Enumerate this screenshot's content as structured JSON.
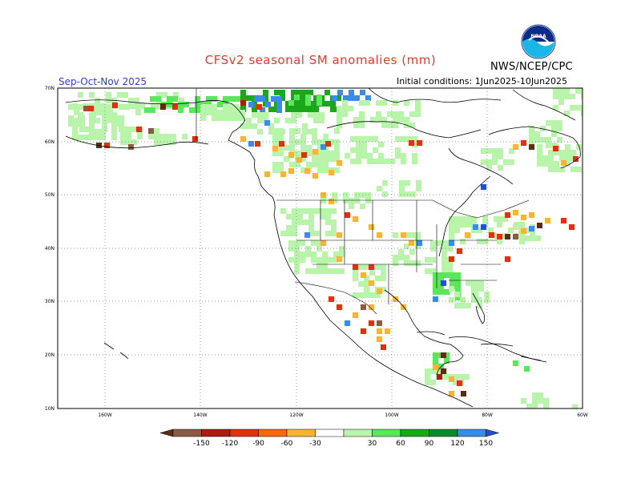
{
  "header": {
    "title": "CFSv2 seasonal SM anomalies (mm)",
    "agency": "NWS/NCEP/CPC",
    "logo_text": "NOAA",
    "season": "Sep-Oct-Nov 2025",
    "initial_conditions": "Initial conditions: 1Jun2025-10Jun2025"
  },
  "axes": {
    "lat_labels": [
      "70N",
      "60N",
      "50N",
      "40N",
      "30N",
      "20N",
      "10N"
    ],
    "lon_labels": [
      "160W",
      "140W",
      "120W",
      "100W",
      "80W",
      "60W"
    ]
  },
  "legend": {
    "labels": [
      "-150",
      "-120",
      "-90",
      "-60",
      "-30",
      "30",
      "60",
      "90",
      "120",
      "150"
    ],
    "colors": [
      "#5a2e12",
      "#8a5a42",
      "#a81e10",
      "#e0310e",
      "#f56a0e",
      "#f8b33a",
      "#ffffff",
      "#b8f5ab",
      "#5ce65c",
      "#1aa81a",
      "#0a8a2a",
      "#3a8ce6",
      "#2050d8"
    ]
  }
}
